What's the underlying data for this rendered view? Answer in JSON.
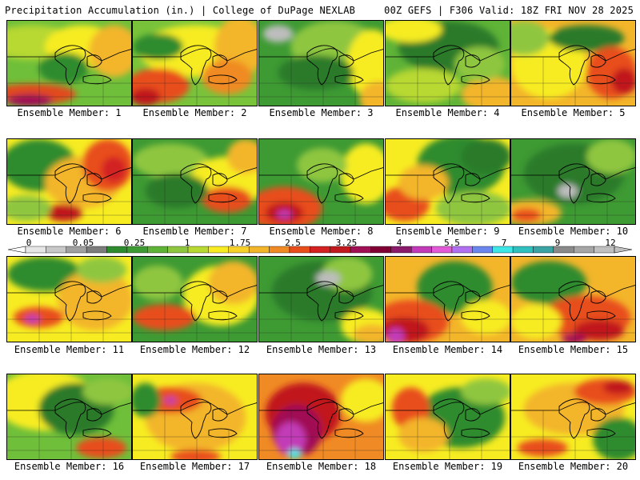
{
  "header": {
    "left": "Precipitation Accumulation (in.) | College of DuPage NEXLAB",
    "right": "00Z GEFS | F306 Valid: 18Z FRI NOV 28 2025"
  },
  "panels": [
    {
      "caption": "Ensemble Member: 1",
      "base": "#6fbf3a",
      "blobs": [
        [
          "#b8d832",
          0.2,
          0.25,
          0.35,
          0.2
        ],
        [
          "#f7ec22",
          0.6,
          0.3,
          0.3,
          0.25
        ],
        [
          "#f3b52a",
          0.85,
          0.35,
          0.2,
          0.3
        ],
        [
          "#e24a1c",
          0.2,
          0.85,
          0.35,
          0.12
        ],
        [
          "#a01054",
          0.18,
          0.92,
          0.18,
          0.07
        ],
        [
          "#2e8b2e",
          0.45,
          0.55,
          0.2,
          0.18
        ]
      ]
    },
    {
      "caption": "Ensemble Member: 2",
      "base": "#79c33b",
      "blobs": [
        [
          "#f7ec22",
          0.5,
          0.35,
          0.45,
          0.3
        ],
        [
          "#f3b52a",
          0.85,
          0.3,
          0.2,
          0.35
        ],
        [
          "#e84e1c",
          0.2,
          0.75,
          0.25,
          0.2
        ],
        [
          "#c0191e",
          0.1,
          0.88,
          0.12,
          0.1
        ],
        [
          "#2e8b2e",
          0.2,
          0.3,
          0.2,
          0.15
        ],
        [
          "#f08a24",
          0.75,
          0.65,
          0.2,
          0.2
        ]
      ]
    },
    {
      "caption": "Ensemble Member: 3",
      "base": "#3e9a33",
      "blobs": [
        [
          "#8fc640",
          0.6,
          0.3,
          0.35,
          0.3
        ],
        [
          "#f7ec22",
          0.9,
          0.5,
          0.2,
          0.4
        ],
        [
          "#bdbdbd",
          0.15,
          0.15,
          0.12,
          0.1
        ],
        [
          "#2a7a2a",
          0.45,
          0.6,
          0.3,
          0.2
        ],
        [
          "#f3b52a",
          0.95,
          0.9,
          0.15,
          0.2
        ]
      ]
    },
    {
      "caption": "Ensemble Member: 4",
      "base": "#5fb337",
      "blobs": [
        [
          "#2a7a2a",
          0.5,
          0.3,
          0.4,
          0.3
        ],
        [
          "#b8d832",
          0.3,
          0.75,
          0.3,
          0.2
        ],
        [
          "#f7ec22",
          0.2,
          0.1,
          0.25,
          0.15
        ],
        [
          "#f3b52a",
          0.85,
          0.85,
          0.25,
          0.2
        ],
        [
          "#8fc640",
          0.75,
          0.5,
          0.2,
          0.2
        ]
      ]
    },
    {
      "caption": "Ensemble Member: 5",
      "base": "#f3b52a",
      "blobs": [
        [
          "#f7ec22",
          0.3,
          0.5,
          0.3,
          0.4
        ],
        [
          "#2a7a2a",
          0.6,
          0.2,
          0.3,
          0.15
        ],
        [
          "#e84e1c",
          0.8,
          0.6,
          0.2,
          0.3
        ],
        [
          "#c0191e",
          0.9,
          0.7,
          0.1,
          0.15
        ],
        [
          "#8fc640",
          0.1,
          0.2,
          0.2,
          0.2
        ]
      ]
    },
    {
      "caption": "Ensemble Member: 6",
      "base": "#f7ec22",
      "blobs": [
        [
          "#2e8b2e",
          0.25,
          0.3,
          0.3,
          0.3
        ],
        [
          "#f3b52a",
          0.6,
          0.5,
          0.3,
          0.3
        ],
        [
          "#e84e1c",
          0.8,
          0.3,
          0.2,
          0.3
        ],
        [
          "#d32020",
          0.85,
          0.35,
          0.1,
          0.15
        ],
        [
          "#c0191e",
          0.45,
          0.85,
          0.15,
          0.1
        ],
        [
          "#8fc640",
          0.15,
          0.8,
          0.2,
          0.15
        ]
      ]
    },
    {
      "caption": "Ensemble Member: 7",
      "base": "#3e9a33",
      "blobs": [
        [
          "#8fc640",
          0.3,
          0.25,
          0.3,
          0.2
        ],
        [
          "#f7ec22",
          0.75,
          0.5,
          0.3,
          0.3
        ],
        [
          "#e84e1c",
          0.75,
          0.7,
          0.2,
          0.15
        ],
        [
          "#2a7a2a",
          0.35,
          0.6,
          0.25,
          0.2
        ],
        [
          "#f3b52a",
          0.9,
          0.2,
          0.15,
          0.2
        ]
      ]
    },
    {
      "caption": "Ensemble Member: 8",
      "base": "#3e9a33",
      "blobs": [
        [
          "#e84e1c",
          0.2,
          0.8,
          0.3,
          0.25
        ],
        [
          "#c0191e",
          0.2,
          0.85,
          0.15,
          0.12
        ],
        [
          "#c23ab7",
          0.2,
          0.87,
          0.06,
          0.05
        ],
        [
          "#f7ec22",
          0.85,
          0.4,
          0.2,
          0.35
        ],
        [
          "#8fc640",
          0.5,
          0.3,
          0.2,
          0.2
        ]
      ]
    },
    {
      "caption": "Ensemble Member: 9",
      "base": "#f7ec22",
      "blobs": [
        [
          "#2e8b2e",
          0.6,
          0.3,
          0.35,
          0.35
        ],
        [
          "#e84e1c",
          0.15,
          0.75,
          0.2,
          0.2
        ],
        [
          "#f3b52a",
          0.3,
          0.5,
          0.2,
          0.2
        ],
        [
          "#8fc640",
          0.7,
          0.8,
          0.3,
          0.2
        ],
        [
          "#2a7a2a",
          0.8,
          0.2,
          0.2,
          0.2
        ]
      ]
    },
    {
      "caption": "Ensemble Member: 10",
      "base": "#3e9a33",
      "blobs": [
        [
          "#2a7a2a",
          0.5,
          0.4,
          0.4,
          0.35
        ],
        [
          "#f3b52a",
          0.15,
          0.85,
          0.25,
          0.15
        ],
        [
          "#e84e1c",
          0.12,
          0.88,
          0.12,
          0.08
        ],
        [
          "#8fc640",
          0.8,
          0.2,
          0.2,
          0.2
        ],
        [
          "#bdbdbd",
          0.45,
          0.6,
          0.08,
          0.08
        ]
      ]
    },
    {
      "caption": "Ensemble Member: 11",
      "base": "#f7ec22",
      "blobs": [
        [
          "#2e8b2e",
          0.3,
          0.2,
          0.3,
          0.2
        ],
        [
          "#f3b52a",
          0.7,
          0.5,
          0.3,
          0.35
        ],
        [
          "#e84e1c",
          0.25,
          0.7,
          0.2,
          0.12
        ],
        [
          "#c23ab7",
          0.2,
          0.72,
          0.06,
          0.05
        ],
        [
          "#8fc640",
          0.75,
          0.15,
          0.2,
          0.15
        ]
      ]
    },
    {
      "caption": "Ensemble Member: 12",
      "base": "#3e9a33",
      "blobs": [
        [
          "#f7ec22",
          0.7,
          0.45,
          0.3,
          0.35
        ],
        [
          "#f3b52a",
          0.8,
          0.3,
          0.2,
          0.25
        ],
        [
          "#e84e1c",
          0.25,
          0.7,
          0.25,
          0.15
        ],
        [
          "#8fc640",
          0.2,
          0.3,
          0.2,
          0.2
        ]
      ]
    },
    {
      "caption": "Ensemble Member: 13",
      "base": "#3e9a33",
      "blobs": [
        [
          "#2a7a2a",
          0.5,
          0.4,
          0.4,
          0.35
        ],
        [
          "#f7ec22",
          0.85,
          0.8,
          0.2,
          0.2
        ],
        [
          "#f3b52a",
          0.9,
          0.9,
          0.15,
          0.12
        ],
        [
          "#8fc640",
          0.7,
          0.2,
          0.2,
          0.2
        ],
        [
          "#bdbdbd",
          0.55,
          0.25,
          0.1,
          0.08
        ]
      ]
    },
    {
      "caption": "Ensemble Member: 14",
      "base": "#f3b52a",
      "blobs": [
        [
          "#2e8b2e",
          0.55,
          0.35,
          0.3,
          0.3
        ],
        [
          "#e84e1c",
          0.2,
          0.75,
          0.3,
          0.25
        ],
        [
          "#c0191e",
          0.15,
          0.85,
          0.2,
          0.15
        ],
        [
          "#c23ab7",
          0.08,
          0.92,
          0.07,
          0.1
        ],
        [
          "#f7ec22",
          0.8,
          0.7,
          0.2,
          0.2
        ]
      ]
    },
    {
      "caption": "Ensemble Member: 15",
      "base": "#f3b52a",
      "blobs": [
        [
          "#2e8b2e",
          0.3,
          0.3,
          0.3,
          0.25
        ],
        [
          "#e84e1c",
          0.6,
          0.7,
          0.35,
          0.25
        ],
        [
          "#c0191e",
          0.7,
          0.85,
          0.2,
          0.12
        ],
        [
          "#a01054",
          0.5,
          0.95,
          0.1,
          0.06
        ],
        [
          "#f7ec22",
          0.2,
          0.75,
          0.2,
          0.2
        ]
      ]
    },
    {
      "caption": "Ensemble Member: 16",
      "base": "#6fbf3a",
      "blobs": [
        [
          "#f7ec22",
          0.3,
          0.3,
          0.4,
          0.35
        ],
        [
          "#2a7a2a",
          0.55,
          0.4,
          0.3,
          0.3
        ],
        [
          "#e84e1c",
          0.75,
          0.85,
          0.2,
          0.12
        ],
        [
          "#8fc640",
          0.8,
          0.2,
          0.2,
          0.15
        ]
      ]
    },
    {
      "caption": "Ensemble Member: 17",
      "base": "#f7ec22",
      "blobs": [
        [
          "#f3b52a",
          0.5,
          0.5,
          0.4,
          0.4
        ],
        [
          "#e84e1c",
          0.3,
          0.3,
          0.25,
          0.15
        ],
        [
          "#c23ab7",
          0.3,
          0.3,
          0.05,
          0.04
        ],
        [
          "#2e8b2e",
          0.1,
          0.3,
          0.12,
          0.2
        ],
        [
          "#e84e1c",
          0.5,
          0.95,
          0.2,
          0.08
        ]
      ]
    },
    {
      "caption": "Ensemble Member: 18",
      "base": "#f08a24",
      "blobs": [
        [
          "#c0191e",
          0.35,
          0.45,
          0.3,
          0.35
        ],
        [
          "#a01054",
          0.3,
          0.65,
          0.2,
          0.3
        ],
        [
          "#c23ab7",
          0.25,
          0.75,
          0.12,
          0.2
        ],
        [
          "#3ee6e6",
          0.28,
          0.92,
          0.05,
          0.06
        ],
        [
          "#f7ec22",
          0.85,
          0.3,
          0.2,
          0.25
        ]
      ]
    },
    {
      "caption": "Ensemble Member: 19",
      "base": "#f7ec22",
      "blobs": [
        [
          "#2e8b2e",
          0.6,
          0.5,
          0.35,
          0.35
        ],
        [
          "#e84e1c",
          0.2,
          0.4,
          0.15,
          0.25
        ],
        [
          "#f3b52a",
          0.3,
          0.7,
          0.2,
          0.2
        ],
        [
          "#8fc640",
          0.8,
          0.2,
          0.2,
          0.15
        ]
      ]
    },
    {
      "caption": "Ensemble Member: 20",
      "base": "#f7ec22",
      "blobs": [
        [
          "#f3b52a",
          0.5,
          0.4,
          0.4,
          0.3
        ],
        [
          "#e84e1c",
          0.75,
          0.2,
          0.25,
          0.15
        ],
        [
          "#c0191e",
          0.85,
          0.15,
          0.12,
          0.08
        ],
        [
          "#2e8b2e",
          0.85,
          0.75,
          0.2,
          0.25
        ],
        [
          "#e84e1c",
          0.25,
          0.85,
          0.2,
          0.1
        ]
      ]
    }
  ],
  "colorbar": {
    "colors": [
      "#e6e6e6",
      "#c8c8c8",
      "#a0a0a0",
      "#7d7d7d",
      "#2e8b2e",
      "#3e9a33",
      "#5fb337",
      "#8fc640",
      "#b8d832",
      "#f7ec22",
      "#f7d22a",
      "#f3b52a",
      "#f08a24",
      "#e84e1c",
      "#d32020",
      "#c0191e",
      "#a01054",
      "#800035",
      "#8a1a6a",
      "#c23ab7",
      "#e25ad6",
      "#b070f0",
      "#6c86f0",
      "#3ee6e6",
      "#2fbfbf",
      "#3aa3a3",
      "#8a8a8a",
      "#a6a6a6",
      "#c0c0c0"
    ],
    "labels": [
      "0",
      "0.05",
      "0.25",
      "1",
      "1.75",
      "2.5",
      "3.25",
      "4",
      "5.5",
      "7",
      "9",
      "12"
    ]
  }
}
